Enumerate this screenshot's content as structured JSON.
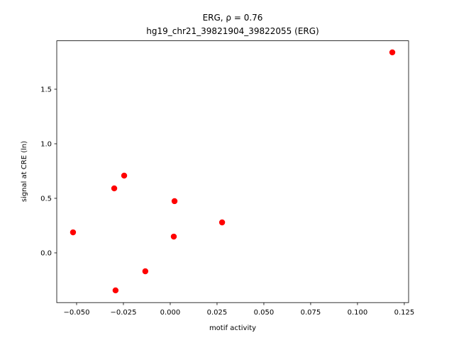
{
  "chart_data": {
    "type": "scatter",
    "title": "ERG, ρ = 0.76",
    "subtitle": "hg19_chr21_39821904_39822055 (ERG)",
    "x_label": "motif activity",
    "y_label": "signal at CRE (ln)",
    "color": "#ff0000",
    "grid": false,
    "x": [
      0.1186,
      -0.0246,
      -0.0299,
      0.0023,
      0.0277,
      -0.0519,
      0.0019,
      -0.0133,
      -0.0292
    ],
    "values": [
      1.838,
      0.708,
      0.591,
      0.474,
      0.279,
      0.188,
      0.149,
      -0.169,
      -0.344
    ],
    "xlim": [
      -0.0606,
      0.1273
    ],
    "ylim": [
      -0.456,
      1.944
    ],
    "xticks": [
      {
        "value": -0.05,
        "label": "−0.050"
      },
      {
        "value": -0.025,
        "label": "−0.025"
      },
      {
        "value": 0,
        "label": "0.000"
      },
      0.025,
      {
        "value": 0.05,
        "label": "0.050"
      },
      0.075,
      {
        "value": 0.1,
        "label": "0.100"
      },
      0.125
    ],
    "yticks": [
      {
        "value": 0,
        "label": "0.0"
      },
      0.5,
      {
        "value": 1,
        "label": "1.0"
      },
      1.5
    ]
  }
}
